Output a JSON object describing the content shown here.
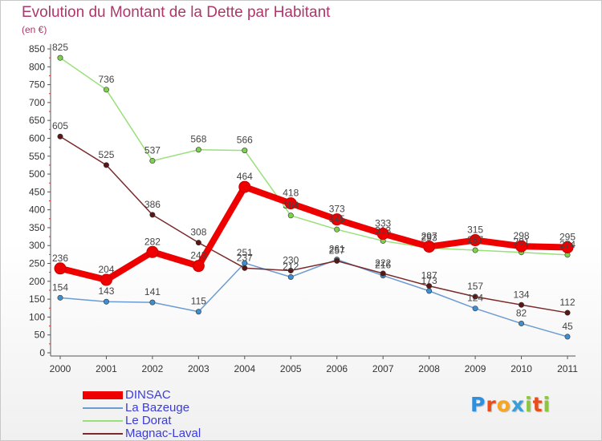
{
  "header": {
    "title": "Evolution du Montant de la Dette par Habitant",
    "unit": "(en €)"
  },
  "brand": {
    "letters": [
      "P",
      "r",
      "o",
      "x",
      "i",
      "t",
      "i"
    ],
    "colors": [
      "#2f8fdc",
      "#e84e1c",
      "#f6a623",
      "#3a9ed8",
      "#8cc63e",
      "#e84e1c",
      "#8cc63e"
    ]
  },
  "chart_data": {
    "type": "line",
    "title": "Evolution du Montant de la Dette par Habitant",
    "ylabel": "(en €)",
    "xlabel": "",
    "x": [
      "2000",
      "2001",
      "2002",
      "2003",
      "2004",
      "2005",
      "2006",
      "2007",
      "2008",
      "2009",
      "2010",
      "2011"
    ],
    "ylim": [
      0,
      850
    ],
    "yticks": [
      0,
      50,
      100,
      150,
      200,
      250,
      300,
      350,
      400,
      450,
      500,
      550,
      600,
      650,
      700,
      750,
      800,
      850
    ],
    "grid": false,
    "legend_position": "bottom-left",
    "series": [
      {
        "name": "DINSAC",
        "color": "#ee0000",
        "marker_color": "#ee0000",
        "emphasis": true,
        "values": [
          236,
          204,
          282,
          243,
          464,
          418,
          373,
          333,
          297,
          315,
          298,
          295
        ],
        "labels": [
          "236",
          "204",
          "282",
          "243",
          "464",
          "418",
          "373",
          "333",
          "297",
          "315",
          "298",
          "295"
        ]
      },
      {
        "name": "La Bazeuge",
        "color": "#6b9bd1",
        "marker_color": "#3d8fcf",
        "values": [
          154,
          143,
          141,
          115,
          251,
          212,
          261,
          216,
          173,
          124,
          82,
          45
        ],
        "labels": [
          "154",
          "143",
          "141",
          "115",
          "251",
          "212",
          "261",
          "216",
          "173",
          "124",
          "82",
          "45"
        ]
      },
      {
        "name": "Le Dorat",
        "color": "#99e07a",
        "marker_color": "#7fd04c",
        "values": [
          825,
          736,
          537,
          568,
          566,
          384,
          345,
          313,
          293,
          287,
          281,
          274
        ],
        "labels": [
          "825",
          "736",
          "537",
          "568",
          "566",
          "384",
          "345",
          "313",
          "293",
          "287",
          "281",
          "274"
        ]
      },
      {
        "name": "Magnac-Laval",
        "color": "#7a2a2a",
        "marker_color": "#5a1515",
        "values": [
          605,
          525,
          386,
          308,
          237,
          230,
          257,
          222,
          187,
          157,
          134,
          112
        ],
        "labels": [
          "605",
          "525",
          "386",
          "308",
          "237",
          "230",
          "257",
          "222",
          "187",
          "157",
          "134",
          "112"
        ]
      }
    ]
  }
}
